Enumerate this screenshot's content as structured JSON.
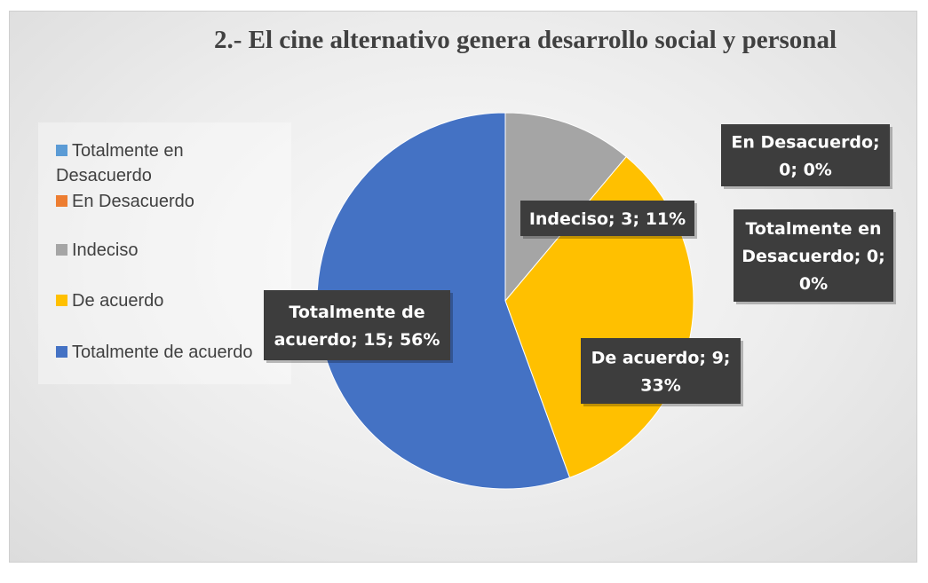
{
  "chart_data": {
    "type": "pie",
    "title": "2.- El cine alternativo genera desarrollo social y personal",
    "legend_position": "left",
    "categories": [
      "Totalmente en Desacuerdo",
      "En Desacuerdo",
      "Indeciso",
      "De acuerdo",
      "Totalmente de acuerdo"
    ],
    "values": [
      0,
      0,
      3,
      9,
      15
    ],
    "percent_labels": [
      "0%",
      "0%",
      "11%",
      "33%",
      "56%"
    ],
    "colors": [
      "#5b9bd5",
      "#ed7d31",
      "#a5a5a5",
      "#ffc000",
      "#4472c4"
    ],
    "legend_lines": [
      [
        "Totalmente en",
        "Desacuerdo"
      ],
      [
        "En Desacuerdo"
      ],
      [
        "Indeciso"
      ],
      [
        "De acuerdo"
      ],
      [
        "Totalmente de acuerdo"
      ]
    ],
    "data_labels": [
      [
        "Totalmente en",
        "Desacuerdo; 0;",
        "0%"
      ],
      [
        "En Desacuerdo;",
        "0; 0%"
      ],
      [
        "Indeciso; 3; 11%"
      ],
      [
        "De acuerdo; 9;",
        "33%"
      ],
      [
        "Totalmente de",
        "acuerdo; 15; 56%"
      ]
    ]
  }
}
